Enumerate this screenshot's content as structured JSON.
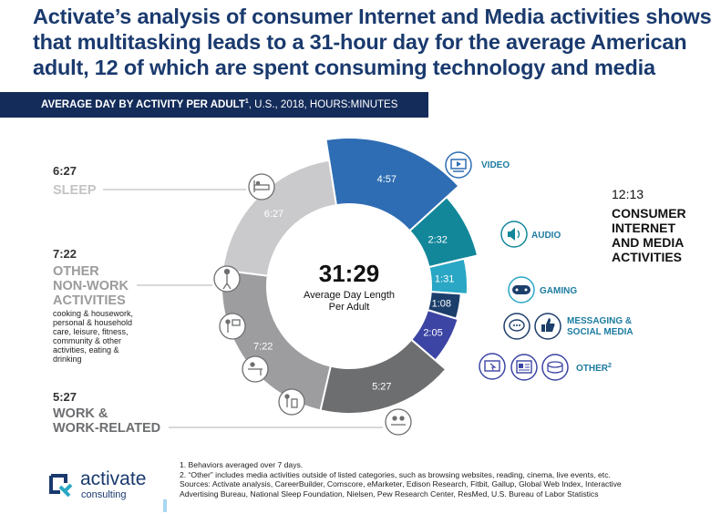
{
  "title_lines": [
    "Activate’s analysis of consumer Internet and Media activities shows",
    "that multitasking leads to a 31-hour day for the average American",
    "adult, 12 of which are spent consuming technology and media"
  ],
  "banner": {
    "bold": "AVERAGE DAY BY ACTIVITY PER ADULT",
    "sup": "1",
    "rest": ", U.S., 2018, HOURS:MINUTES"
  },
  "center": {
    "total": "31:29",
    "label_line1": "Average Day Length",
    "label_line2": "Per Adult"
  },
  "left_labels": {
    "sleep": {
      "time": "6:27",
      "name": "SLEEP"
    },
    "other": {
      "time": "7:22",
      "name_lines": [
        "OTHER",
        "NON-WORK",
        "ACTIVITIES"
      ],
      "desc_lines": [
        "cooking & housework,",
        "personal & household",
        "care, leisure, fitness,",
        "community & other",
        "activities, eating &",
        "drinking"
      ]
    },
    "work": {
      "time": "5:27",
      "name_lines": [
        "WORK &",
        "WORK-RELATED"
      ]
    }
  },
  "right_summary": {
    "time": "12:13",
    "lines": [
      "CONSUMER",
      "INTERNET",
      "AND MEDIA",
      "ACTIVITIES"
    ]
  },
  "media_labels": {
    "video": "VIDEO",
    "audio": "AUDIO",
    "gaming": "GAMING",
    "messaging_lines": [
      "MESSAGING &",
      "SOCIAL MEDIA"
    ],
    "other": "OTHER",
    "other_sup": "2"
  },
  "chart_data": {
    "type": "pie",
    "title": "AVERAGE DAY BY ACTIVITY PER ADULT, U.S., 2018, HOURS:MINUTES",
    "total": "31:29",
    "slices": [
      {
        "name": "Video",
        "label": "4:57",
        "minutes": 297,
        "color": "#2e6db3"
      },
      {
        "name": "Audio",
        "label": "2:32",
        "minutes": 152,
        "color": "#12879a"
      },
      {
        "name": "Gaming",
        "label": "1:31",
        "minutes": 91,
        "color": "#29a7c5"
      },
      {
        "name": "Messaging & Social Media",
        "label": "1:08",
        "minutes": 68,
        "color": "#1c3e6b"
      },
      {
        "name": "Other",
        "label": "2:05",
        "minutes": 125,
        "color": "#3c45a4"
      },
      {
        "name": "Work & Work-Related",
        "label": "5:27",
        "minutes": 327,
        "color": "#6d6e70"
      },
      {
        "name": "Other Non-Work Activities",
        "label": "7:22",
        "minutes": 442,
        "color": "#9d9d9f"
      },
      {
        "name": "Sleep",
        "label": "6:27",
        "minutes": 387,
        "color": "#cacacc"
      }
    ]
  },
  "footnotes": [
    "1. Behaviors averaged over 7 days.",
    "2. “Other” includes media activities outside of listed categories, such as browsing websites, reading, cinema, live events, etc.",
    "Sources: Activate analysis, CareerBuilder, Comscore, eMarketer, Edison Research, Fitbit, Gallup, Global Web Index, Interactive",
    "Advertising Bureau, National Sleep Foundation, Nielsen, Pew Research Center, ResMed, U.S. Bureau of Labor Statistics"
  ],
  "logo": {
    "word": "activate",
    "sub": "consulting"
  },
  "colors": {
    "navy": "#1a3a6e",
    "banner": "#142c5a",
    "media_label": "#1c7ba0"
  }
}
